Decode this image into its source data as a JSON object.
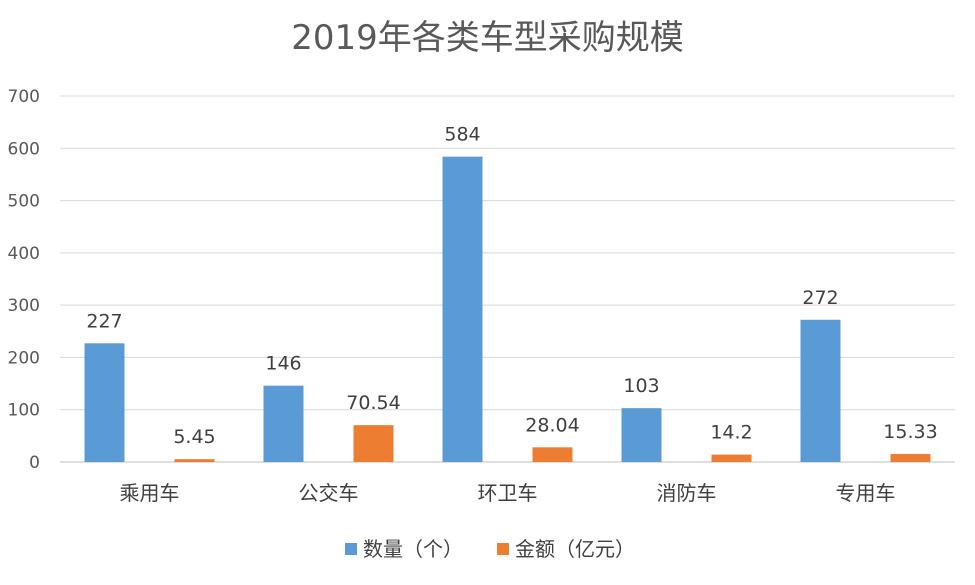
{
  "chart_data": {
    "type": "bar",
    "title": "2019年各类车型采购规模",
    "xlabel": "",
    "ylabel": "",
    "categories": [
      "乘用车",
      "公交车",
      "环卫车",
      "消防车",
      "专用车"
    ],
    "series": [
      {
        "name": "数量（个）",
        "values": [
          227,
          146,
          584,
          103,
          272
        ],
        "labels": [
          "227",
          "146",
          "584",
          "103",
          "272"
        ],
        "color": "#5b9bd5"
      },
      {
        "name": "金额（亿元）",
        "values": [
          5.45,
          70.54,
          28.04,
          14.2,
          15.33
        ],
        "labels": [
          "5.45",
          "70.54",
          "28.04",
          "14.2",
          "15.33"
        ],
        "color": "#ed7d31"
      }
    ],
    "ylim": [
      0,
      700
    ],
    "yticks": [
      "0",
      "100",
      "200",
      "300",
      "400",
      "500",
      "600",
      "700"
    ],
    "grid": true,
    "legend": "bottom"
  }
}
